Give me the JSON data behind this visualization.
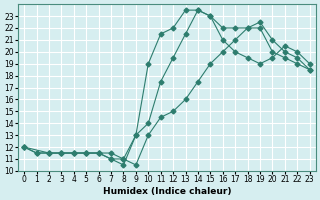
{
  "xlabel": "Humidex (Indice chaleur)",
  "ylabel": "",
  "bg_color": "#d6eef0",
  "grid_color": "#ffffff",
  "line_color": "#2d7d6e",
  "xlim": [
    -0.5,
    23.5
  ],
  "ylim": [
    10,
    24
  ],
  "xticks": [
    0,
    1,
    2,
    3,
    4,
    5,
    6,
    7,
    8,
    9,
    10,
    11,
    12,
    13,
    14,
    15,
    16,
    17,
    18,
    19,
    20,
    21,
    22,
    23
  ],
  "yticks": [
    10,
    11,
    12,
    13,
    14,
    15,
    16,
    17,
    18,
    19,
    20,
    21,
    22,
    23
  ],
  "line1_x": [
    0,
    1,
    2,
    3,
    4,
    5,
    6,
    7,
    8,
    9,
    10,
    11,
    12,
    13,
    14,
    15,
    16,
    17,
    18,
    19,
    20,
    21,
    22,
    23
  ],
  "line1_y": [
    12,
    11.5,
    11.5,
    11.5,
    11.5,
    11.5,
    11.5,
    11,
    11,
    13,
    19,
    21.5,
    22,
    23.5,
    23.5,
    23,
    22,
    22,
    22,
    22,
    20,
    19.5,
    19,
    18.5
  ],
  "line2_x": [
    0,
    1,
    2,
    3,
    4,
    5,
    6,
    7,
    8,
    9,
    10,
    11,
    12,
    13,
    14,
    15,
    16,
    17,
    18,
    19,
    20,
    21,
    22,
    23
  ],
  "line2_y": [
    12,
    11.5,
    11.5,
    11.5,
    11.5,
    11.5,
    11.5,
    11,
    10.5,
    13,
    14,
    17.5,
    19.5,
    21.5,
    23.5,
    23,
    21,
    20,
    19.5,
    19,
    19.5,
    20.5,
    20,
    19
  ],
  "line3_x": [
    0,
    2,
    3,
    4,
    5,
    6,
    7,
    8,
    9,
    10,
    11,
    12,
    13,
    14,
    15,
    16,
    17,
    18,
    19,
    20,
    21,
    22,
    23
  ],
  "line3_y": [
    12,
    11.5,
    11.5,
    11.5,
    11.5,
    11.5,
    11.5,
    11,
    10.5,
    13,
    14.5,
    15,
    16,
    17.5,
    19,
    20,
    21,
    22,
    22.5,
    21,
    20,
    19.5,
    18.5
  ]
}
